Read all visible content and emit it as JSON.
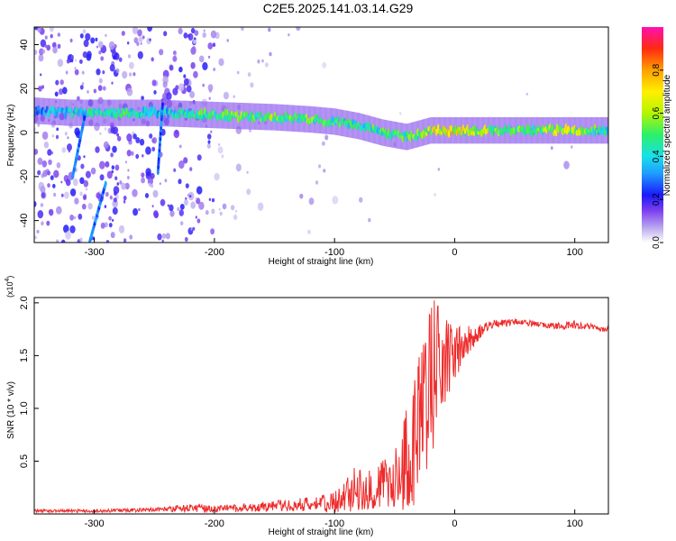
{
  "figure_title": "C2E5.2025.141.03.14.G29",
  "chart_data": [
    {
      "type": "heatmap",
      "title": "C2E5.2025.141.03.14.G29",
      "xlabel": "Height of straight line (km)",
      "ylabel": "Frequency (Hz)",
      "xlim": [
        -350,
        128
      ],
      "ylim": [
        -50,
        48
      ],
      "xticks": [
        -300,
        -200,
        -100,
        0,
        100
      ],
      "xtick_labels": [
        "-300",
        "-200",
        "-100",
        "0",
        "100"
      ],
      "yticks": [
        -40,
        -20,
        0,
        20,
        40
      ],
      "ytick_labels": [
        "-40",
        "-20",
        "0",
        "20",
        "40"
      ],
      "colorbar": {
        "label": "Normalized spectral amplitude",
        "range": [
          0,
          1
        ],
        "ticks": [
          0.0,
          0.2,
          0.4,
          0.6,
          0.8
        ],
        "tick_labels": [
          "0.0",
          "0.2",
          "0.4",
          "0.6",
          "0.8"
        ]
      },
      "main_trace": {
        "description_values": "approximate center frequency (Hz) versus height (km)",
        "x": [
          -350,
          -320,
          -280,
          -250,
          -200,
          -150,
          -120,
          -100,
          -80,
          -60,
          -40,
          -20,
          0,
          20,
          60,
          100,
          128
        ],
        "y": [
          10,
          9,
          9,
          9,
          8,
          7,
          6,
          5,
          3,
          0,
          -2,
          1,
          1,
          1,
          1,
          1,
          1
        ],
        "amplitude": [
          0.3,
          0.4,
          0.45,
          0.35,
          0.5,
          0.5,
          0.5,
          0.45,
          0.45,
          0.45,
          0.5,
          0.6,
          0.65,
          0.55,
          0.5,
          0.6,
          0.4
        ]
      },
      "grid": false
    },
    {
      "type": "line",
      "xlabel": "Height of straight line (km)",
      "ylabel": "SNR (10 * v/v)",
      "y_multiplier": "(x10",
      "y_multiplier_exp": "4",
      "y_multiplier_close": ")",
      "xlim": [
        -350,
        128
      ],
      "ylim": [
        0,
        2.05
      ],
      "xticks": [
        -300,
        -200,
        -100,
        0,
        100
      ],
      "xtick_labels": [
        "-300",
        "-200",
        "-100",
        "0",
        "100"
      ],
      "yticks": [
        0.5,
        1.0,
        1.5,
        2.0
      ],
      "ytick_labels": [
        "0.5",
        "1.0",
        "1.5",
        "2.0"
      ],
      "color": "#ee2b2b",
      "series": [
        {
          "x": [
            -350,
            -300,
            -250,
            -220,
            -200,
            -180,
            -150,
            -120,
            -100,
            -90,
            -80,
            -70,
            -60,
            -50,
            -40,
            -30,
            -20,
            -15,
            -10,
            -5,
            0,
            5,
            10,
            20,
            30,
            50,
            70,
            90,
            100,
            110,
            128
          ],
          "y": [
            0.03,
            0.03,
            0.04,
            0.06,
            0.05,
            0.06,
            0.08,
            0.1,
            0.12,
            0.2,
            0.28,
            0.25,
            0.32,
            0.35,
            0.55,
            0.9,
            1.3,
            1.55,
            1.5,
            1.5,
            1.55,
            1.6,
            1.65,
            1.72,
            1.8,
            1.82,
            1.8,
            1.78,
            1.8,
            1.78,
            1.75
          ],
          "noise": [
            0.015,
            0.015,
            0.02,
            0.04,
            0.03,
            0.04,
            0.05,
            0.07,
            0.1,
            0.18,
            0.22,
            0.2,
            0.25,
            0.3,
            0.5,
            0.7,
            0.8,
            0.6,
            0.45,
            0.35,
            0.25,
            0.2,
            0.15,
            0.08,
            0.04,
            0.03,
            0.03,
            0.03,
            0.04,
            0.03,
            0.03
          ]
        }
      ],
      "grid": false
    }
  ]
}
